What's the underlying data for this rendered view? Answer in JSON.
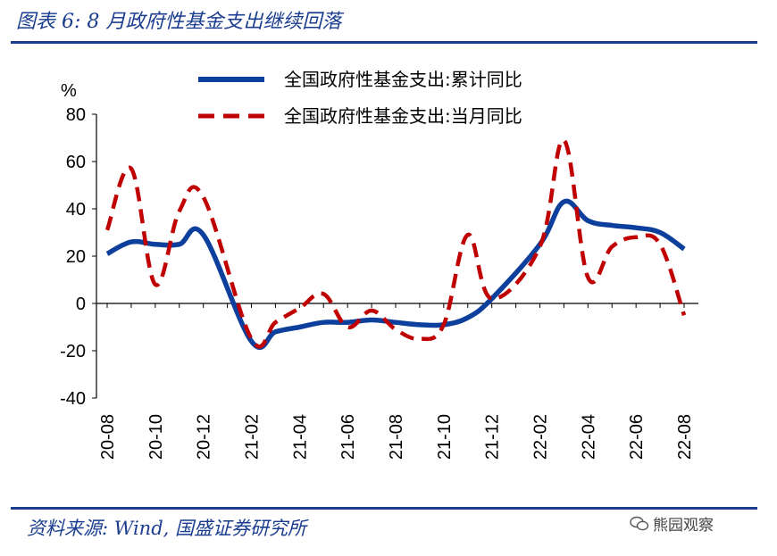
{
  "title": "图表 6:  8 月政府性基金支出继续回落",
  "source": "资料来源:  Wind,  国盛证券研究所",
  "watermark": {
    "text": "熊园观察",
    "icon": "wechat-icon"
  },
  "chart_data": {
    "type": "line",
    "ylabel": "%",
    "ylim": [
      -40,
      80
    ],
    "yticks": [
      -40,
      -20,
      0,
      20,
      40,
      60,
      80
    ],
    "x": [
      "20-08",
      "20-09",
      "20-10",
      "20-11",
      "20-12",
      "21-01",
      "21-02",
      "21-03",
      "21-04",
      "21-05",
      "21-06",
      "21-07",
      "21-08",
      "21-09",
      "21-10",
      "21-11",
      "21-12",
      "22-01",
      "22-02",
      "22-03",
      "22-04",
      "22-05",
      "22-06",
      "22-07",
      "22-08"
    ],
    "xtick_labels": [
      "20-08",
      "20-10",
      "20-12",
      "21-02",
      "21-04",
      "21-06",
      "21-08",
      "21-10",
      "21-12",
      "22-02",
      "22-04",
      "22-06",
      "22-08"
    ],
    "legend_position": "top-center",
    "series": [
      {
        "name": "全国政府性基金支出:累计同比",
        "style": "solid",
        "color": "#0d3f9c",
        "values": [
          21,
          26,
          25,
          25,
          29,
          null,
          -16,
          -12,
          -10,
          -8,
          -8,
          -7,
          -8,
          -9,
          -9,
          -6,
          2,
          null,
          25,
          43,
          35,
          33,
          32,
          30,
          23
        ]
      },
      {
        "name": "全国政府性基金支出:当月同比",
        "style": "dashed",
        "color": "#c00000",
        "values": [
          31,
          57,
          8,
          39,
          45,
          null,
          -15,
          -8,
          -2,
          4,
          -10,
          -3,
          -11,
          -15,
          -9,
          29,
          2,
          null,
          24,
          69,
          11,
          24,
          28,
          25,
          -5
        ]
      }
    ]
  }
}
